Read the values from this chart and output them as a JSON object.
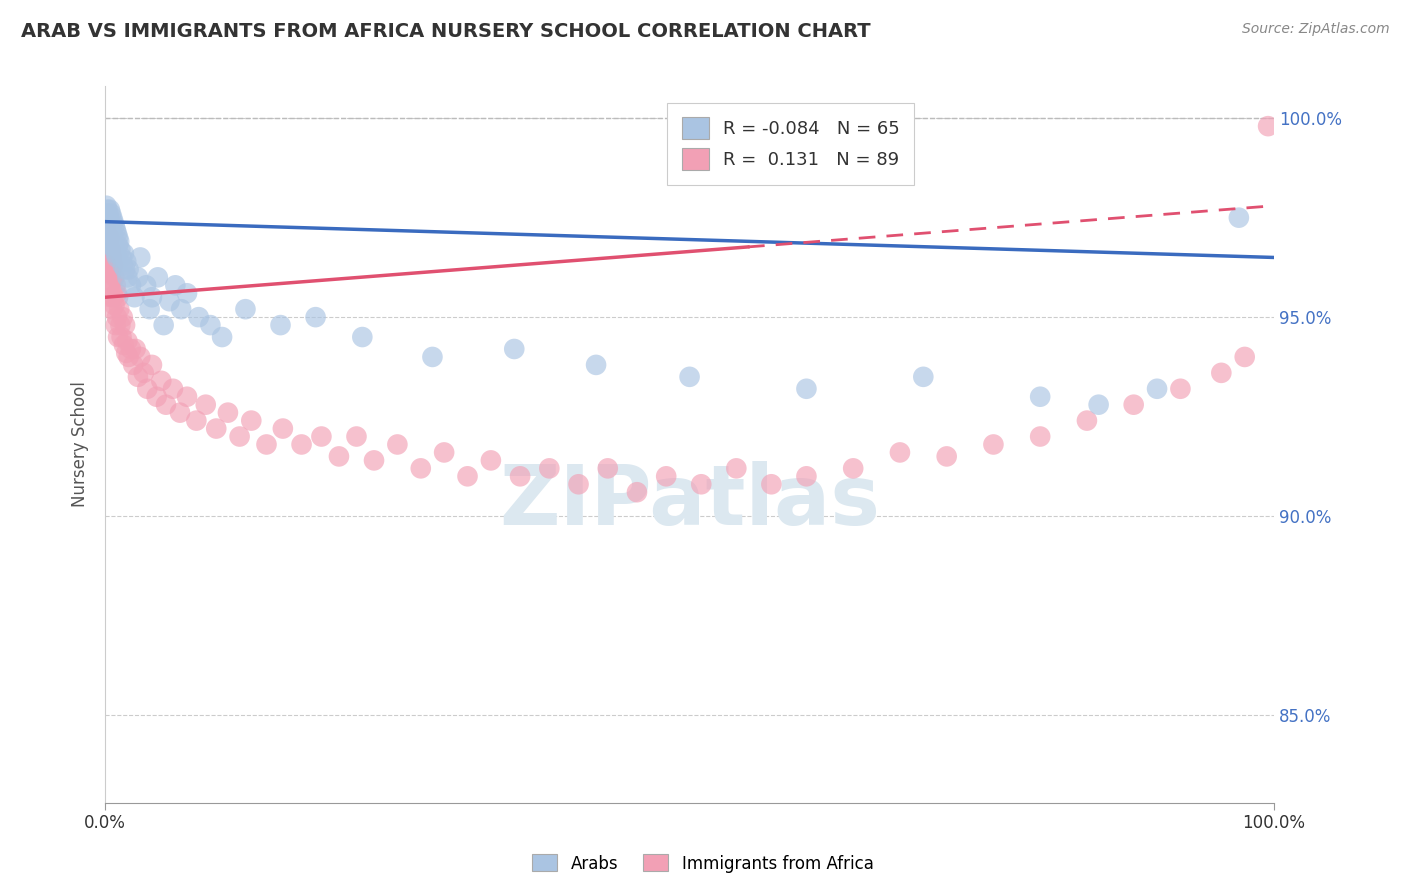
{
  "title": "ARAB VS IMMIGRANTS FROM AFRICA NURSERY SCHOOL CORRELATION CHART",
  "source": "Source: ZipAtlas.com",
  "ylabel": "Nursery School",
  "r_arab": -0.084,
  "n_arab": 65,
  "r_africa": 0.131,
  "n_africa": 89,
  "arab_color": "#aac4e2",
  "africa_color": "#f2a0b5",
  "trendline_arab_color": "#3a6bbf",
  "trendline_africa_color": "#e05070",
  "background_color": "#ffffff",
  "arab_x": [
    0.001,
    0.001,
    0.002,
    0.002,
    0.002,
    0.003,
    0.003,
    0.003,
    0.004,
    0.004,
    0.004,
    0.005,
    0.005,
    0.005,
    0.006,
    0.006,
    0.007,
    0.007,
    0.008,
    0.008,
    0.009,
    0.009,
    0.01,
    0.01,
    0.011,
    0.011,
    0.012,
    0.013,
    0.014,
    0.015,
    0.016,
    0.017,
    0.018,
    0.019,
    0.02,
    0.022,
    0.025,
    0.028,
    0.03,
    0.035,
    0.038,
    0.04,
    0.045,
    0.05,
    0.055,
    0.06,
    0.065,
    0.07,
    0.08,
    0.09,
    0.1,
    0.12,
    0.15,
    0.18,
    0.22,
    0.28,
    0.35,
    0.42,
    0.5,
    0.6,
    0.7,
    0.8,
    0.85,
    0.9,
    0.97
  ],
  "arab_y": [
    0.978,
    0.975,
    0.977,
    0.973,
    0.976,
    0.975,
    0.974,
    0.971,
    0.977,
    0.972,
    0.969,
    0.976,
    0.97,
    0.968,
    0.975,
    0.971,
    0.974,
    0.968,
    0.973,
    0.967,
    0.972,
    0.966,
    0.971,
    0.965,
    0.97,
    0.968,
    0.969,
    0.967,
    0.965,
    0.963,
    0.966,
    0.962,
    0.964,
    0.96,
    0.962,
    0.958,
    0.955,
    0.96,
    0.965,
    0.958,
    0.952,
    0.955,
    0.96,
    0.948,
    0.954,
    0.958,
    0.952,
    0.956,
    0.95,
    0.948,
    0.945,
    0.952,
    0.948,
    0.95,
    0.945,
    0.94,
    0.942,
    0.938,
    0.935,
    0.932,
    0.935,
    0.93,
    0.928,
    0.932,
    0.975
  ],
  "africa_x": [
    0.001,
    0.001,
    0.002,
    0.002,
    0.002,
    0.003,
    0.003,
    0.003,
    0.004,
    0.004,
    0.004,
    0.005,
    0.005,
    0.005,
    0.006,
    0.006,
    0.006,
    0.007,
    0.007,
    0.008,
    0.008,
    0.009,
    0.009,
    0.01,
    0.01,
    0.011,
    0.011,
    0.012,
    0.013,
    0.014,
    0.015,
    0.016,
    0.017,
    0.018,
    0.019,
    0.02,
    0.022,
    0.024,
    0.026,
    0.028,
    0.03,
    0.033,
    0.036,
    0.04,
    0.044,
    0.048,
    0.052,
    0.058,
    0.064,
    0.07,
    0.078,
    0.086,
    0.095,
    0.105,
    0.115,
    0.125,
    0.138,
    0.152,
    0.168,
    0.185,
    0.2,
    0.215,
    0.23,
    0.25,
    0.27,
    0.29,
    0.31,
    0.33,
    0.355,
    0.38,
    0.405,
    0.43,
    0.455,
    0.48,
    0.51,
    0.54,
    0.57,
    0.6,
    0.64,
    0.68,
    0.72,
    0.76,
    0.8,
    0.84,
    0.88,
    0.92,
    0.955,
    0.975,
    0.995
  ],
  "africa_y": [
    0.972,
    0.968,
    0.97,
    0.965,
    0.963,
    0.968,
    0.962,
    0.966,
    0.97,
    0.964,
    0.958,
    0.967,
    0.961,
    0.955,
    0.965,
    0.959,
    0.952,
    0.963,
    0.955,
    0.96,
    0.953,
    0.958,
    0.948,
    0.956,
    0.95,
    0.955,
    0.945,
    0.952,
    0.948,
    0.945,
    0.95,
    0.943,
    0.948,
    0.941,
    0.944,
    0.94,
    0.942,
    0.938,
    0.942,
    0.935,
    0.94,
    0.936,
    0.932,
    0.938,
    0.93,
    0.934,
    0.928,
    0.932,
    0.926,
    0.93,
    0.924,
    0.928,
    0.922,
    0.926,
    0.92,
    0.924,
    0.918,
    0.922,
    0.918,
    0.92,
    0.915,
    0.92,
    0.914,
    0.918,
    0.912,
    0.916,
    0.91,
    0.914,
    0.91,
    0.912,
    0.908,
    0.912,
    0.906,
    0.91,
    0.908,
    0.912,
    0.908,
    0.91,
    0.912,
    0.916,
    0.915,
    0.918,
    0.92,
    0.924,
    0.928,
    0.932,
    0.936,
    0.94,
    0.998
  ],
  "xlim": [
    0.0,
    1.0
  ],
  "ylim": [
    0.828,
    1.008
  ],
  "yticks": [
    0.85,
    0.9,
    0.95,
    1.0
  ],
  "ytick_labels_right": [
    "85.0%",
    "90.0%",
    "95.0%",
    "100.0%"
  ],
  "xticks": [
    0.0,
    1.0
  ],
  "xtick_labels": [
    "0.0%",
    "100.0%"
  ],
  "grid_color": "#cccccc",
  "trendline_arab_start_y": 0.974,
  "trendline_arab_end_y": 0.965,
  "trendline_africa_start_y": 0.955,
  "trendline_africa_end_y": 0.978
}
